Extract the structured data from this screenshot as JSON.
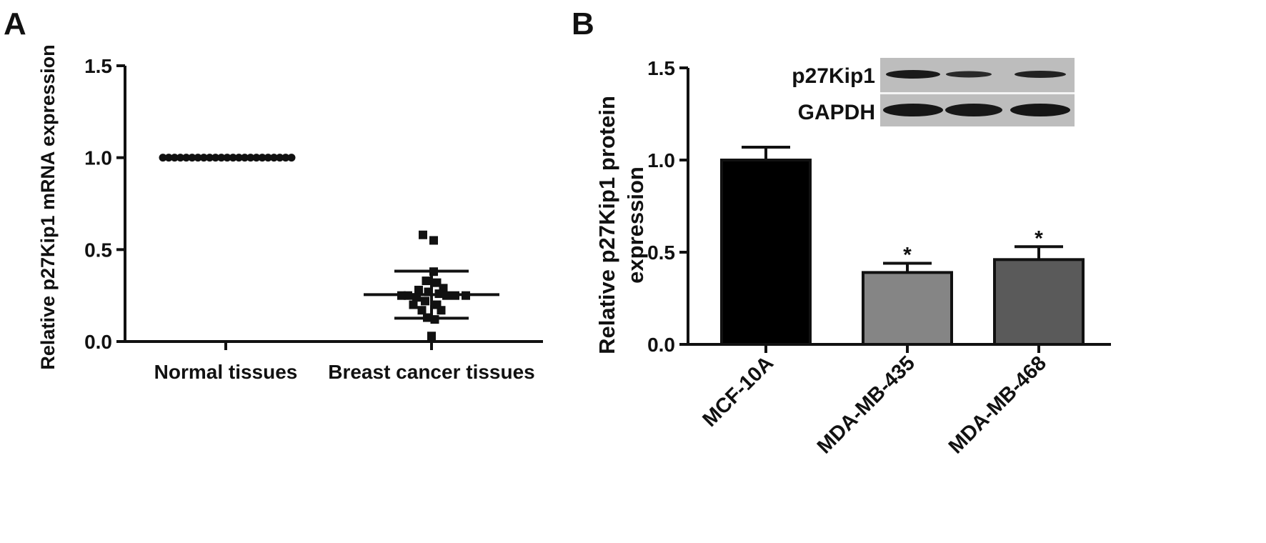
{
  "panels": {
    "a_label": "A",
    "b_label": "B"
  },
  "chart_data": [
    {
      "panel": "A",
      "type": "scatter",
      "title": "",
      "xlabel": "",
      "ylabel": "Relative p27Kip1 mRNA expression",
      "ylim": [
        0,
        1.5
      ],
      "yticks": [
        "0.0",
        "0.5",
        "1.0",
        "1.5"
      ],
      "categories": [
        "Normal tissues",
        "Breast cancer tissues"
      ],
      "grid": false,
      "series": [
        {
          "category": "Normal tissues",
          "marker": "circle",
          "values": [
            1,
            1,
            1,
            1,
            1,
            1,
            1,
            1,
            1,
            1,
            1,
            1,
            1,
            1,
            1,
            1,
            1,
            1,
            1,
            1,
            1,
            1,
            1
          ],
          "mean": 1.0
        },
        {
          "category": "Breast cancer tissues",
          "marker": "square",
          "points": [
            {
              "x": -0.08,
              "y": 0.58
            },
            {
              "x": 0.02,
              "y": 0.55
            },
            {
              "x": 0.02,
              "y": 0.38
            },
            {
              "x": -0.05,
              "y": 0.33
            },
            {
              "x": 0.05,
              "y": 0.32
            },
            {
              "x": -0.12,
              "y": 0.28
            },
            {
              "x": 0.11,
              "y": 0.29
            },
            {
              "x": -0.03,
              "y": 0.27
            },
            {
              "x": 0.07,
              "y": 0.26
            },
            {
              "x": -0.28,
              "y": 0.25
            },
            {
              "x": -0.22,
              "y": 0.25
            },
            {
              "x": -0.14,
              "y": 0.24
            },
            {
              "x": 0.14,
              "y": 0.25
            },
            {
              "x": 0.22,
              "y": 0.25
            },
            {
              "x": 0.32,
              "y": 0.25
            },
            {
              "x": -0.06,
              "y": 0.22
            },
            {
              "x": -0.17,
              "y": 0.2
            },
            {
              "x": 0.05,
              "y": 0.2
            },
            {
              "x": -0.09,
              "y": 0.17
            },
            {
              "x": 0.09,
              "y": 0.17
            },
            {
              "x": -0.04,
              "y": 0.13
            },
            {
              "x": 0.03,
              "y": 0.12
            },
            {
              "x": 0.0,
              "y": 0.03
            }
          ],
          "mean": 0.255,
          "sd_upper": 0.383,
          "sd_lower": 0.127
        }
      ]
    },
    {
      "panel": "B",
      "type": "bar",
      "title": "",
      "xlabel": "",
      "ylabel": [
        "Relative p27Kip1 protein",
        "expression"
      ],
      "ylim": [
        0,
        1.5
      ],
      "yticks": [
        "0.0",
        "0.5",
        "1.0",
        "1.5"
      ],
      "categories": [
        "MCF-10A",
        "MDA-MB-435",
        "MDA-MB-468"
      ],
      "values": [
        1.0,
        0.39,
        0.46
      ],
      "errors": [
        0.07,
        0.05,
        0.07
      ],
      "colors": [
        "#000000",
        "#858585",
        "#5a5a5a"
      ],
      "significance": [
        "",
        "*",
        "*"
      ],
      "grid": false,
      "inset_blot": {
        "labels": [
          "p27Kip1",
          "GAPDH"
        ]
      }
    }
  ]
}
